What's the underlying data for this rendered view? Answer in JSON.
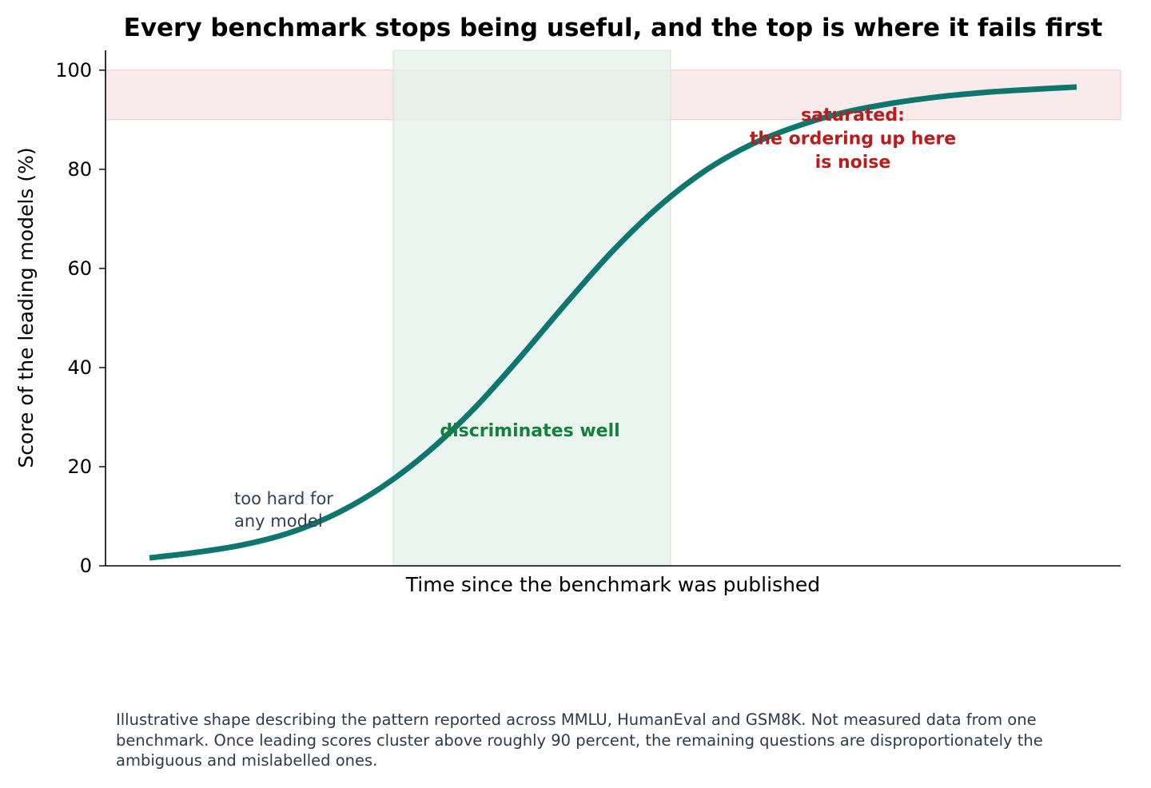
{
  "chart_data": {
    "type": "line",
    "title": "Every benchmark stops being useful, and the top is where it fails first",
    "xlabel": "Time since the benchmark was published",
    "ylabel": "Score of the leading models (%)",
    "x_ticks_shown": false,
    "xlim": [
      0,
      1
    ],
    "ylim": [
      0,
      104
    ],
    "yticks": [
      0,
      20,
      40,
      60,
      80,
      100
    ],
    "grid": false,
    "series": [
      {
        "color": "#0f766e",
        "x": [
          0.0,
          0.05,
          0.1,
          0.15,
          0.2,
          0.25,
          0.3,
          0.35,
          0.4,
          0.45,
          0.5,
          0.55,
          0.6,
          0.65,
          0.7,
          0.75,
          0.8,
          0.85,
          0.9,
          0.95,
          1.0
        ],
        "y": [
          1.6,
          2.7,
          4.2,
          6.6,
          10.4,
          15.8,
          22.9,
          31.7,
          42.1,
          53.1,
          63.6,
          72.6,
          79.8,
          85.1,
          88.8,
          91.5,
          93.3,
          94.6,
          95.5,
          96.1,
          96.6
        ]
      }
    ],
    "bands": [
      {
        "orientation": "horizontal",
        "range": [
          90,
          100
        ],
        "color": "#f6e0e0"
      },
      {
        "orientation": "vertical",
        "range": [
          0.263,
          0.562
        ],
        "color": "#e3f1e8"
      }
    ],
    "annotations": [
      {
        "lines": [
          "too hard for",
          "any model"
        ],
        "color": "#334155",
        "bold": false
      },
      {
        "lines": [
          "discriminates well"
        ],
        "color": "#15803d",
        "bold": true
      },
      {
        "lines": [
          "saturated:",
          "the ordering up here",
          "is noise"
        ],
        "color": "#b91c1c",
        "bold": true
      }
    ]
  },
  "caption_text": "Illustrative shape describing the pattern reported across MMLU, HumanEval and GSM8K. Not measured data from one benchmark. Once leading scores cluster above roughly 90 percent, the remaining questions are disproportionately the ambiguous and mislabelled ones."
}
